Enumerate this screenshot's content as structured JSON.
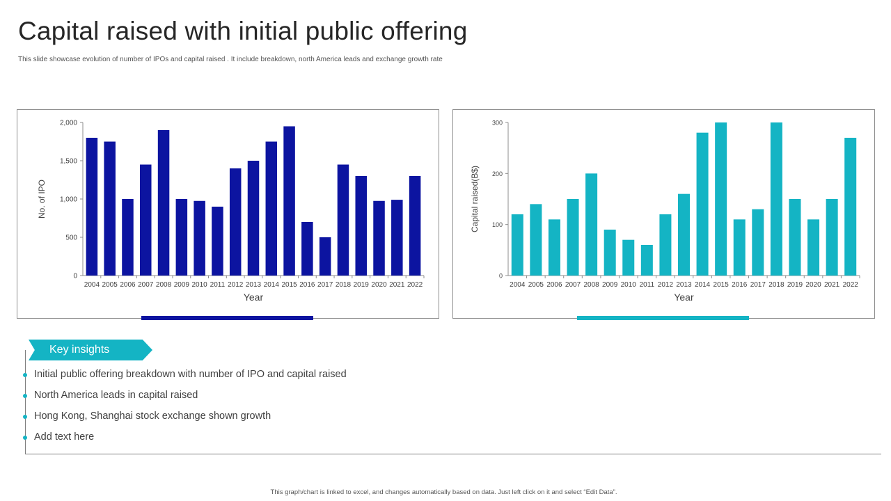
{
  "title": "Capital raised with initial public offering",
  "subtitle": "This slide showcase evolution of number of IPOs  and capital raised . It include breakdown, north America leads  and exchange growth rate",
  "colors": {
    "navy": "#0c14a0",
    "teal": "#14b4c4",
    "axis": "#8c8c8c",
    "text": "#404040"
  },
  "chart_data": [
    {
      "type": "bar",
      "title": "",
      "xlabel": "Year",
      "ylabel": "No. of IPO",
      "categories": [
        "2004",
        "2005",
        "2006",
        "2007",
        "2008",
        "2009",
        "2010",
        "2011",
        "2012",
        "2013",
        "2014",
        "2015",
        "2016",
        "2017",
        "2018",
        "2019",
        "2020",
        "2021",
        "2022"
      ],
      "values": [
        1800,
        1750,
        1000,
        1450,
        1900,
        1000,
        975,
        900,
        1400,
        1500,
        1750,
        1950,
        700,
        500,
        1450,
        1300,
        975,
        990,
        1300
      ],
      "ylim": [
        0,
        2000
      ],
      "yticks": [
        0,
        500,
        1000,
        1500,
        2000
      ],
      "ytick_labels": [
        "0",
        "500",
        "1,000",
        "1,500",
        "2,000"
      ],
      "color": "#0c14a0",
      "grid": false,
      "legend": "none"
    },
    {
      "type": "bar",
      "title": "",
      "xlabel": "Year",
      "ylabel": "Capital raised(B$)",
      "categories": [
        "2004",
        "2005",
        "2006",
        "2007",
        "2008",
        "2009",
        "2010",
        "2011",
        "2012",
        "2013",
        "2014",
        "2015",
        "2016",
        "2017",
        "2018",
        "2019",
        "2020",
        "2021",
        "2022"
      ],
      "values": [
        120,
        140,
        110,
        150,
        200,
        90,
        70,
        60,
        120,
        160,
        280,
        300,
        110,
        130,
        300,
        150,
        110,
        150,
        270
      ],
      "ylim": [
        0,
        300
      ],
      "yticks": [
        0,
        100,
        200,
        300
      ],
      "ytick_labels": [
        "0",
        "100",
        "200",
        "300"
      ],
      "color": "#14b4c4",
      "grid": false,
      "legend": "none"
    }
  ],
  "insights": {
    "header": "Key insights",
    "items": [
      "Initial public offering breakdown with number of IPO and capital raised",
      "North America leads in capital raised",
      "Hong Kong, Shanghai stock exchange shown growth",
      "Add text here"
    ]
  },
  "footer": "This graph/chart is linked to excel, and changes automatically based on data. Just left click on it and select “Edit Data”."
}
